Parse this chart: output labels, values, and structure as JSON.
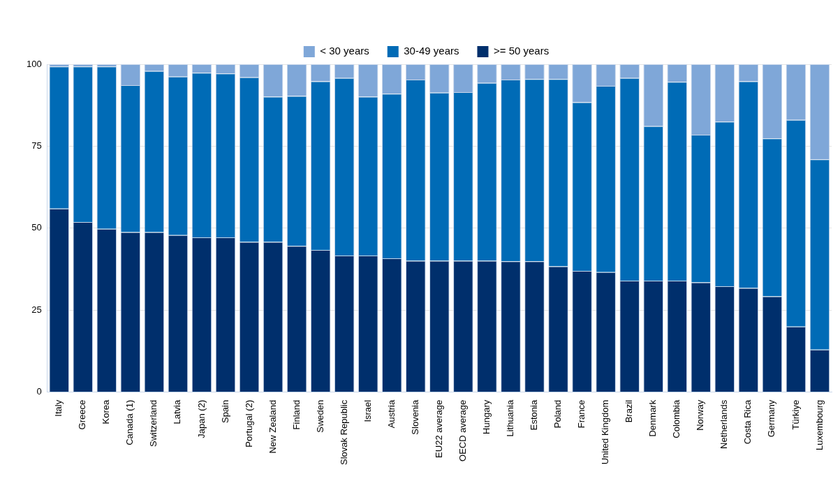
{
  "chart_data": {
    "type": "bar",
    "stacked": true,
    "legend": "top",
    "grid": "y",
    "categories": [
      "Italy",
      "Greece",
      "Korea",
      "Canada (1)",
      "Switzerland",
      "Latvia",
      "Japan (2)",
      "Spain",
      "Portugal (2)",
      "New Zealand",
      "Finland",
      "Sweden",
      "Slovak Republic",
      "Israel",
      "Austria",
      "Slovenia",
      "EU22 average",
      "OECD average",
      "Hungary",
      "Lithuania",
      "Estonia",
      "Poland",
      "France",
      "United Kingdom",
      "Brazil",
      "Denmark",
      "Colombia",
      "Norway",
      "Netherlands",
      "Costa Rica",
      "Germany",
      "Türkiye",
      "Luxembourg"
    ],
    "ylim": [
      0,
      100
    ],
    "yticks": [
      0,
      25,
      50,
      75,
      100
    ],
    "series": [
      {
        "name": ">= 50 years",
        "color": "#002f6c",
        "values": [
          56,
          51.9,
          49.8,
          48.8,
          48.8,
          47.9,
          47.2,
          47.2,
          45.8,
          45.8,
          44.6,
          43.4,
          41.7,
          41.7,
          40.8,
          40.1,
          40.1,
          40.1,
          40.1,
          39.9,
          39.9,
          38.4,
          37,
          36.6,
          34,
          34,
          34,
          33.5,
          32.3,
          31.8,
          29.2,
          20,
          13
        ]
      },
      {
        "name": "30-49 years",
        "color": "#006bb6",
        "values": [
          43.3,
          47.4,
          49.5,
          44.8,
          49.1,
          48.3,
          50.2,
          50,
          50.2,
          44.3,
          45.7,
          51.4,
          54.1,
          48.4,
          50.2,
          55.2,
          51.2,
          51.4,
          54.2,
          55.4,
          55.6,
          57.1,
          51.4,
          56.8,
          61.8,
          47.1,
          60.6,
          45,
          50.2,
          63,
          48.2,
          63,
          58
        ]
      },
      {
        "name": "< 30 years",
        "color": "#7fa7d8",
        "values": [
          0.7,
          0.7,
          0.7,
          6.4,
          2.1,
          3.8,
          2.6,
          2.8,
          4,
          9.9,
          9.7,
          5.2,
          4.2,
          9.9,
          9,
          4.7,
          8.7,
          8.5,
          5.7,
          4.7,
          4.5,
          4.5,
          11.6,
          6.6,
          4.2,
          18.9,
          5.4,
          21.5,
          17.5,
          5.2,
          22.6,
          17,
          29
        ]
      }
    ]
  }
}
